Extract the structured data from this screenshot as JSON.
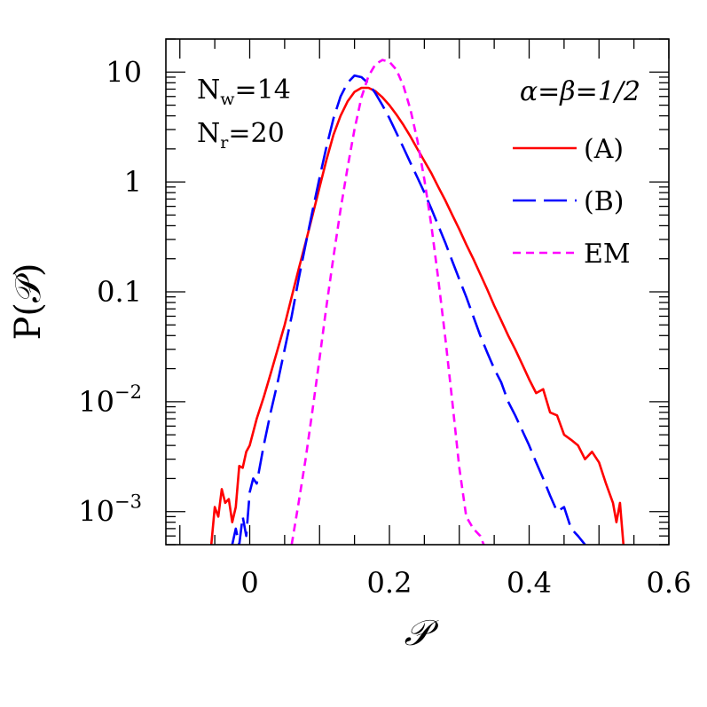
{
  "chart_data": {
    "type": "line",
    "title": "",
    "xlabel": "𝒫",
    "ylabel": "P(𝒫)",
    "xlim": [
      -0.12,
      0.6
    ],
    "ylim": [
      0.0005,
      20
    ],
    "yscale": "log",
    "grid": false,
    "legend_position": "top-right",
    "x_ticks": [
      {
        "value": 0,
        "label": "0"
      },
      {
        "value": 0.2,
        "label": "0.2"
      },
      {
        "value": 0.4,
        "label": "0.4"
      },
      {
        "value": 0.6,
        "label": "0.6"
      }
    ],
    "y_ticks": [
      {
        "value": 10,
        "label": "10",
        "sup": ""
      },
      {
        "value": 1,
        "label": "1",
        "sup": ""
      },
      {
        "value": 0.1,
        "label": "0.1",
        "sup": ""
      },
      {
        "value": 0.01,
        "label": "10",
        "sup": "−2"
      },
      {
        "value": 0.001,
        "label": "10",
        "sup": "−3"
      }
    ],
    "annotations": {
      "nw": {
        "base": "N",
        "sub": "w",
        "rest": "=14"
      },
      "nr": {
        "base": "N",
        "sub": "r",
        "rest": "=20"
      },
      "params": "α=β=1/2"
    },
    "series": [
      {
        "name": "(A)",
        "color": "#ff0000",
        "dash": "solid",
        "x": [
          -0.055,
          -0.05,
          -0.045,
          -0.04,
          -0.035,
          -0.03,
          -0.025,
          -0.02,
          -0.015,
          -0.01,
          -0.005,
          0.0,
          0.01,
          0.02,
          0.03,
          0.04,
          0.05,
          0.06,
          0.07,
          0.08,
          0.09,
          0.1,
          0.11,
          0.12,
          0.13,
          0.14,
          0.15,
          0.16,
          0.17,
          0.18,
          0.19,
          0.2,
          0.21,
          0.22,
          0.23,
          0.24,
          0.25,
          0.26,
          0.27,
          0.28,
          0.29,
          0.3,
          0.31,
          0.32,
          0.33,
          0.34,
          0.35,
          0.36,
          0.37,
          0.38,
          0.39,
          0.4,
          0.41,
          0.42,
          0.43,
          0.44,
          0.45,
          0.46,
          0.47,
          0.48,
          0.49,
          0.5,
          0.51,
          0.52,
          0.525,
          0.53,
          0.535
        ],
        "y": [
          0.0005,
          0.0011,
          0.0009,
          0.0016,
          0.0012,
          0.0013,
          0.0008,
          0.0011,
          0.0026,
          0.0025,
          0.0035,
          0.004,
          0.007,
          0.011,
          0.018,
          0.03,
          0.05,
          0.09,
          0.16,
          0.28,
          0.5,
          0.9,
          1.6,
          2.7,
          4.0,
          5.4,
          6.6,
          7.2,
          7.2,
          6.7,
          5.9,
          5.0,
          4.1,
          3.3,
          2.6,
          2.0,
          1.55,
          1.2,
          0.9,
          0.68,
          0.5,
          0.37,
          0.27,
          0.2,
          0.145,
          0.105,
          0.075,
          0.055,
          0.04,
          0.03,
          0.022,
          0.016,
          0.012,
          0.013,
          0.008,
          0.0075,
          0.005,
          0.0045,
          0.004,
          0.003,
          0.0035,
          0.0028,
          0.0018,
          0.0012,
          0.0008,
          0.0012,
          0.0005
        ]
      },
      {
        "name": "(B)",
        "color": "#0000ff",
        "dash": "long",
        "x": [
          -0.025,
          -0.02,
          -0.015,
          -0.01,
          -0.005,
          0.0,
          0.005,
          0.01,
          0.02,
          0.03,
          0.04,
          0.05,
          0.06,
          0.07,
          0.08,
          0.09,
          0.1,
          0.11,
          0.12,
          0.13,
          0.14,
          0.15,
          0.16,
          0.17,
          0.18,
          0.19,
          0.2,
          0.21,
          0.22,
          0.23,
          0.24,
          0.25,
          0.26,
          0.27,
          0.28,
          0.29,
          0.3,
          0.31,
          0.32,
          0.33,
          0.34,
          0.35,
          0.36,
          0.37,
          0.38,
          0.39,
          0.4,
          0.41,
          0.42,
          0.43,
          0.44,
          0.45,
          0.46,
          0.47,
          0.48
        ],
        "y": [
          0.0005,
          0.0007,
          0.0005,
          0.0009,
          0.0006,
          0.0015,
          0.002,
          0.0018,
          0.004,
          0.008,
          0.015,
          0.03,
          0.06,
          0.13,
          0.27,
          0.55,
          1.1,
          2.1,
          3.8,
          6.0,
          8.0,
          9.3,
          9.0,
          7.9,
          6.4,
          5.0,
          3.8,
          2.8,
          2.05,
          1.5,
          1.1,
          0.8,
          0.57,
          0.4,
          0.28,
          0.19,
          0.13,
          0.09,
          0.06,
          0.04,
          0.028,
          0.02,
          0.015,
          0.01,
          0.0075,
          0.0055,
          0.004,
          0.0028,
          0.002,
          0.0014,
          0.001,
          0.0011,
          0.0007,
          0.0006,
          0.0005
        ]
      },
      {
        "name": "EM",
        "color": "#ff00ff",
        "dash": "short",
        "x": [
          0.06,
          0.07,
          0.08,
          0.09,
          0.1,
          0.11,
          0.12,
          0.13,
          0.14,
          0.15,
          0.16,
          0.17,
          0.18,
          0.19,
          0.2,
          0.21,
          0.22,
          0.23,
          0.24,
          0.25,
          0.26,
          0.27,
          0.28,
          0.29,
          0.3,
          0.31,
          0.32,
          0.33,
          0.335
        ],
        "y": [
          0.0005,
          0.0012,
          0.003,
          0.0085,
          0.025,
          0.075,
          0.21,
          0.56,
          1.35,
          3.0,
          5.9,
          9.2,
          11.8,
          12.9,
          12.4,
          10.5,
          7.5,
          4.6,
          2.4,
          1.05,
          0.4,
          0.13,
          0.038,
          0.01,
          0.0025,
          0.0009,
          0.0007,
          0.0006,
          0.0005
        ]
      }
    ]
  }
}
